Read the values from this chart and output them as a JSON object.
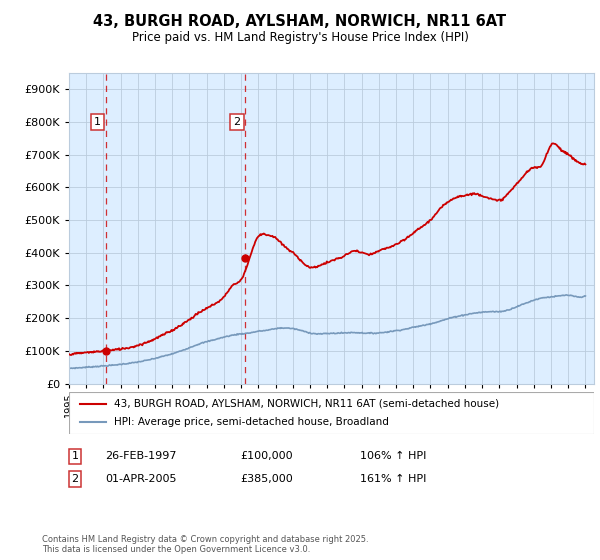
{
  "title": "43, BURGH ROAD, AYLSHAM, NORWICH, NR11 6AT",
  "subtitle": "Price paid vs. HM Land Registry's House Price Index (HPI)",
  "legend_label_red": "43, BURGH ROAD, AYLSHAM, NORWICH, NR11 6AT (semi-detached house)",
  "legend_label_blue": "HPI: Average price, semi-detached house, Broadland",
  "annotation1_date": "26-FEB-1997",
  "annotation1_price": "£100,000",
  "annotation1_hpi": "106% ↑ HPI",
  "annotation2_date": "01-APR-2005",
  "annotation2_price": "£385,000",
  "annotation2_hpi": "161% ↑ HPI",
  "footer": "Contains HM Land Registry data © Crown copyright and database right 2025.\nThis data is licensed under the Open Government Licence v3.0.",
  "ylim": [
    0,
    950000
  ],
  "yticks": [
    0,
    100000,
    200000,
    300000,
    400000,
    500000,
    600000,
    700000,
    800000,
    900000
  ],
  "red_color": "#cc0000",
  "blue_color": "#7799bb",
  "bg_color": "#ddeeff",
  "grid_color": "#bbccdd",
  "vline_color": "#cc0000",
  "marker1_x": 1997.15,
  "marker1_y": 100000,
  "marker2_x": 2005.25,
  "marker2_y": 385000,
  "xmin": 1995,
  "xmax": 2025.5,
  "blue_points_x": [
    1995.0,
    1995.5,
    1996.0,
    1996.5,
    1997.0,
    1997.5,
    1998.0,
    1998.5,
    1999.0,
    1999.5,
    2000.0,
    2000.5,
    2001.0,
    2001.5,
    2002.0,
    2002.5,
    2003.0,
    2003.5,
    2004.0,
    2004.5,
    2005.0,
    2005.5,
    2006.0,
    2006.5,
    2007.0,
    2007.5,
    2008.0,
    2008.5,
    2009.0,
    2009.5,
    2010.0,
    2010.5,
    2011.0,
    2011.5,
    2012.0,
    2012.5,
    2013.0,
    2013.5,
    2014.0,
    2014.5,
    2015.0,
    2015.5,
    2016.0,
    2016.5,
    2017.0,
    2017.5,
    2018.0,
    2018.5,
    2019.0,
    2019.5,
    2020.0,
    2020.5,
    2021.0,
    2021.5,
    2022.0,
    2022.5,
    2023.0,
    2023.5,
    2024.0,
    2024.5,
    2025.0
  ],
  "blue_points_y": [
    47000,
    48000,
    50000,
    52000,
    54000,
    56000,
    59000,
    62000,
    66000,
    71000,
    77000,
    84000,
    91000,
    100000,
    110000,
    120000,
    128000,
    135000,
    142000,
    148000,
    152000,
    155000,
    160000,
    163000,
    168000,
    170000,
    168000,
    162000,
    155000,
    152000,
    153000,
    154000,
    155000,
    156000,
    155000,
    154000,
    155000,
    158000,
    162000,
    166000,
    172000,
    177000,
    183000,
    190000,
    198000,
    205000,
    210000,
    215000,
    218000,
    220000,
    220000,
    225000,
    235000,
    245000,
    255000,
    262000,
    265000,
    268000,
    270000,
    265000,
    268000
  ],
  "red_points_x": [
    1995.0,
    1995.5,
    1996.0,
    1996.5,
    1997.0,
    1997.5,
    1998.0,
    1998.5,
    1999.0,
    1999.5,
    2000.0,
    2000.5,
    2001.0,
    2001.5,
    2002.0,
    2002.5,
    2003.0,
    2003.5,
    2004.0,
    2004.5,
    2005.0,
    2005.5,
    2006.0,
    2006.5,
    2007.0,
    2007.5,
    2008.0,
    2008.5,
    2009.0,
    2009.5,
    2010.0,
    2010.5,
    2011.0,
    2011.5,
    2012.0,
    2012.5,
    2013.0,
    2013.5,
    2014.0,
    2014.5,
    2015.0,
    2015.5,
    2016.0,
    2016.5,
    2017.0,
    2017.5,
    2018.0,
    2018.5,
    2019.0,
    2019.5,
    2020.0,
    2020.5,
    2021.0,
    2021.5,
    2022.0,
    2022.5,
    2023.0,
    2023.5,
    2024.0,
    2024.5,
    2025.0
  ],
  "red_points_y": [
    90000,
    92000,
    95000,
    97000,
    100000,
    102000,
    106000,
    110000,
    117000,
    126000,
    137000,
    150000,
    163000,
    179000,
    196000,
    215000,
    230000,
    245000,
    265000,
    300000,
    318000,
    385000,
    450000,
    455000,
    445000,
    420000,
    400000,
    375000,
    355000,
    360000,
    370000,
    380000,
    390000,
    405000,
    400000,
    395000,
    405000,
    415000,
    425000,
    440000,
    460000,
    480000,
    500000,
    530000,
    555000,
    570000,
    575000,
    580000,
    575000,
    565000,
    560000,
    580000,
    610000,
    640000,
    660000,
    670000,
    730000,
    720000,
    700000,
    680000,
    670000
  ]
}
